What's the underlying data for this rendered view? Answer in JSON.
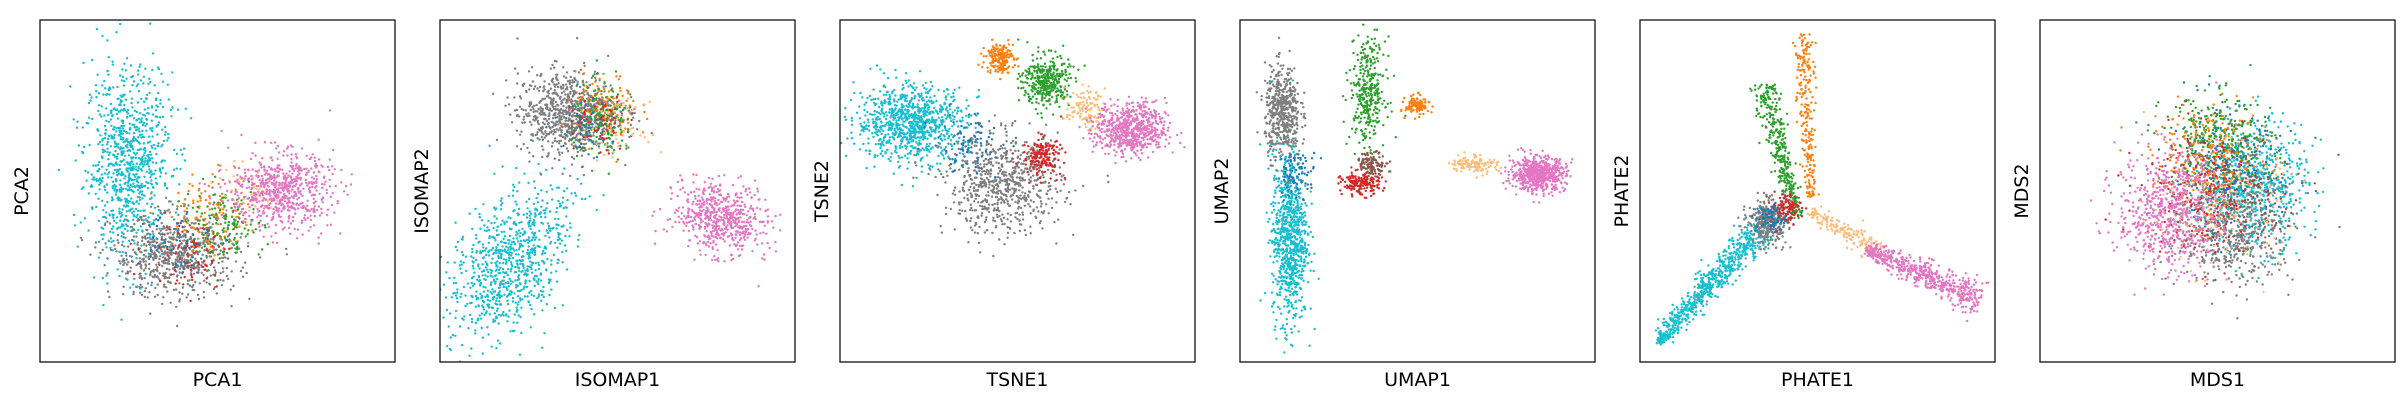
{
  "figure": {
    "background": "#ffffff"
  },
  "chart_data": [
    {
      "type": "scatter",
      "title": "",
      "xlabel": "PCA1",
      "ylabel": "PCA2",
      "xticks": false,
      "yticks": false,
      "grid": false,
      "legend": "none",
      "xlim": [
        0,
        10
      ],
      "ylim": [
        0,
        10
      ],
      "series": [
        {
          "name": "cyan",
          "color": "#17becf",
          "shape": "blob",
          "center": [
            2.5,
            5.8
          ],
          "spread": [
            1.1,
            2.5
          ],
          "rotation": 0,
          "count": 900
        },
        {
          "name": "gray",
          "color": "#7f7f7f",
          "shape": "blob",
          "center": [
            3.8,
            3.1
          ],
          "spread": [
            1.6,
            1.1
          ],
          "rotation": 0,
          "count": 650
        },
        {
          "name": "orange",
          "color": "#ff7f0e",
          "shape": "blob",
          "center": [
            4.8,
            4.2
          ],
          "spread": [
            1.0,
            1.1
          ],
          "rotation": 0,
          "count": 140
        },
        {
          "name": "green",
          "color": "#2ca02c",
          "shape": "blob",
          "center": [
            5.2,
            4.0
          ],
          "spread": [
            1.0,
            1.0
          ],
          "rotation": 0,
          "count": 150
        },
        {
          "name": "red",
          "color": "#d62728",
          "shape": "blob",
          "center": [
            4.2,
            3.2
          ],
          "spread": [
            1.1,
            0.9
          ],
          "rotation": 0,
          "count": 80
        },
        {
          "name": "blue",
          "color": "#1f77b4",
          "shape": "blob",
          "center": [
            3.8,
            3.6
          ],
          "spread": [
            1.0,
            0.9
          ],
          "rotation": 0,
          "count": 70
        },
        {
          "name": "peach",
          "color": "#ffbb78",
          "shape": "blob",
          "center": [
            5.8,
            5.0
          ],
          "spread": [
            0.9,
            0.7
          ],
          "rotation": 0,
          "count": 60
        },
        {
          "name": "pink",
          "color": "#e377c2",
          "shape": "blob",
          "center": [
            6.8,
            5.0
          ],
          "spread": [
            1.3,
            1.0
          ],
          "rotation": 0,
          "count": 650
        }
      ]
    },
    {
      "type": "scatter",
      "title": "",
      "xlabel": "ISOMAP1",
      "ylabel": "ISOMAP2",
      "xticks": false,
      "yticks": false,
      "grid": false,
      "legend": "none",
      "xlim": [
        0,
        10
      ],
      "ylim": [
        0,
        10
      ],
      "series": [
        {
          "name": "cyan",
          "color": "#17becf",
          "shape": "blob",
          "center": [
            2.0,
            2.9
          ],
          "spread": [
            1.2,
            2.3
          ],
          "rotation": -30,
          "count": 850
        },
        {
          "name": "gray",
          "color": "#7f7f7f",
          "shape": "blob",
          "center": [
            3.6,
            7.3
          ],
          "spread": [
            1.3,
            1.1
          ],
          "rotation": 0,
          "count": 800
        },
        {
          "name": "orange",
          "color": "#ff7f0e",
          "shape": "blob",
          "center": [
            4.7,
            7.4
          ],
          "spread": [
            0.8,
            0.9
          ],
          "rotation": 0,
          "count": 130
        },
        {
          "name": "green",
          "color": "#2ca02c",
          "shape": "blob",
          "center": [
            4.6,
            7.0
          ],
          "spread": [
            0.8,
            1.0
          ],
          "rotation": 0,
          "count": 160
        },
        {
          "name": "red",
          "color": "#d62728",
          "shape": "blob",
          "center": [
            4.4,
            6.9
          ],
          "spread": [
            0.8,
            0.8
          ],
          "rotation": 0,
          "count": 70
        },
        {
          "name": "blue",
          "color": "#1f77b4",
          "shape": "blob",
          "center": [
            4.1,
            7.0
          ],
          "spread": [
            0.8,
            0.8
          ],
          "rotation": 0,
          "count": 60
        },
        {
          "name": "peach",
          "color": "#ffbb78",
          "shape": "blob",
          "center": [
            5.0,
            6.8
          ],
          "spread": [
            0.7,
            0.7
          ],
          "rotation": 0,
          "count": 50
        },
        {
          "name": "pink",
          "color": "#e377c2",
          "shape": "blob",
          "center": [
            7.9,
            4.2
          ],
          "spread": [
            1.2,
            0.9
          ],
          "rotation": -20,
          "count": 600
        }
      ]
    },
    {
      "type": "scatter",
      "title": "",
      "xlabel": "TSNE1",
      "ylabel": "TSNE2",
      "xticks": false,
      "yticks": false,
      "grid": false,
      "legend": "none",
      "xlim": [
        0,
        10
      ],
      "ylim": [
        0,
        10
      ],
      "series": [
        {
          "name": "cyan",
          "color": "#17becf",
          "shape": "blob",
          "center": [
            2.0,
            7.0
          ],
          "spread": [
            1.4,
            1.0
          ],
          "rotation": 0,
          "count": 900
        },
        {
          "name": "gray",
          "color": "#7f7f7f",
          "shape": "blob",
          "center": [
            4.6,
            5.2
          ],
          "spread": [
            1.5,
            1.3
          ],
          "rotation": 0,
          "count": 700
        },
        {
          "name": "orange",
          "color": "#ff7f0e",
          "shape": "blob",
          "center": [
            4.5,
            8.9
          ],
          "spread": [
            0.35,
            0.4
          ],
          "rotation": 0,
          "count": 180
        },
        {
          "name": "green",
          "color": "#2ca02c",
          "shape": "blob",
          "center": [
            5.8,
            8.2
          ],
          "spread": [
            0.6,
            0.7
          ],
          "rotation": 0,
          "count": 360
        },
        {
          "name": "red",
          "color": "#d62728",
          "shape": "blob",
          "center": [
            5.7,
            6.0
          ],
          "spread": [
            0.5,
            0.5
          ],
          "rotation": 0,
          "count": 170
        },
        {
          "name": "blue",
          "color": "#1f77b4",
          "shape": "blob",
          "center": [
            3.6,
            6.4
          ],
          "spread": [
            0.9,
            0.8
          ],
          "rotation": 0,
          "count": 90
        },
        {
          "name": "peach",
          "color": "#ffbb78",
          "shape": "blob",
          "center": [
            6.9,
            7.4
          ],
          "spread": [
            0.5,
            0.5
          ],
          "rotation": 0,
          "count": 110
        },
        {
          "name": "pink",
          "color": "#e377c2",
          "shape": "blob",
          "center": [
            8.2,
            6.8
          ],
          "spread": [
            0.9,
            0.7
          ],
          "rotation": 0,
          "count": 650
        }
      ]
    },
    {
      "type": "scatter",
      "title": "",
      "xlabel": "UMAP1",
      "ylabel": "UMAP2",
      "xticks": false,
      "yticks": false,
      "grid": false,
      "legend": "none",
      "xlim": [
        0,
        10
      ],
      "ylim": [
        0,
        10
      ],
      "series": [
        {
          "name": "cyan",
          "color": "#17becf",
          "shape": "blob",
          "center": [
            1.4,
            3.7
          ],
          "spread": [
            0.45,
            2.3
          ],
          "rotation": 0,
          "count": 850
        },
        {
          "name": "gray",
          "color": "#7f7f7f",
          "shape": "blob",
          "center": [
            1.2,
            7.3
          ],
          "spread": [
            0.45,
            1.2
          ],
          "rotation": 0,
          "count": 500
        },
        {
          "name": "green",
          "color": "#2ca02c",
          "shape": "blob",
          "center": [
            3.6,
            7.9
          ],
          "spread": [
            0.45,
            1.4
          ],
          "rotation": 0,
          "count": 340
        },
        {
          "name": "orange",
          "color": "#ff7f0e",
          "shape": "blob",
          "center": [
            5.0,
            7.5
          ],
          "spread": [
            0.3,
            0.25
          ],
          "rotation": 0,
          "count": 120
        },
        {
          "name": "red",
          "color": "#d62728",
          "shape": "blob",
          "center": [
            3.4,
            5.2
          ],
          "spread": [
            0.5,
            0.3
          ],
          "rotation": 0,
          "count": 170
        },
        {
          "name": "brown",
          "color": "#8c564b",
          "shape": "blob",
          "center": [
            3.7,
            5.8
          ],
          "spread": [
            0.4,
            0.3
          ],
          "rotation": 0,
          "count": 110
        },
        {
          "name": "blue",
          "color": "#1f77b4",
          "shape": "blob",
          "center": [
            1.6,
            5.5
          ],
          "spread": [
            0.5,
            0.6
          ],
          "rotation": 0,
          "count": 90
        },
        {
          "name": "peach",
          "color": "#ffbb78",
          "shape": "blob",
          "center": [
            6.6,
            5.8
          ],
          "spread": [
            0.6,
            0.25
          ],
          "rotation": 0,
          "count": 120
        },
        {
          "name": "pink",
          "color": "#e377c2",
          "shape": "blob",
          "center": [
            8.4,
            5.5
          ],
          "spread": [
            0.7,
            0.45
          ],
          "rotation": 0,
          "count": 600
        }
      ]
    },
    {
      "type": "scatter",
      "title": "",
      "xlabel": "PHATE1",
      "ylabel": "PHATE2",
      "xticks": false,
      "yticks": false,
      "grid": false,
      "legend": "none",
      "xlim": [
        0,
        10
      ],
      "ylim": [
        0,
        10
      ],
      "series": [
        {
          "name": "cyan",
          "color": "#17becf",
          "shape": "arm",
          "from": [
            0.5,
            0.6
          ],
          "to": [
            3.4,
            3.9
          ],
          "spread": 0.25,
          "count": 700
        },
        {
          "name": "gray",
          "color": "#7f7f7f",
          "shape": "blob",
          "center": [
            3.6,
            4.1
          ],
          "spread": [
            0.5,
            0.6
          ],
          "rotation": 0,
          "count": 350
        },
        {
          "name": "green",
          "color": "#2ca02c",
          "shape": "arm",
          "from": [
            4.4,
            4.3
          ],
          "to": [
            3.5,
            8.1
          ],
          "spread": 0.2,
          "count": 360
        },
        {
          "name": "orange",
          "color": "#ff7f0e",
          "shape": "arm",
          "from": [
            4.8,
            4.8
          ],
          "to": [
            4.6,
            9.6
          ],
          "spread": 0.15,
          "count": 240
        },
        {
          "name": "red",
          "color": "#d62728",
          "shape": "blob",
          "center": [
            4.1,
            4.5
          ],
          "spread": [
            0.4,
            0.4
          ],
          "rotation": 0,
          "count": 100
        },
        {
          "name": "blue",
          "color": "#1f77b4",
          "shape": "blob",
          "center": [
            3.7,
            4.2
          ],
          "spread": [
            0.4,
            0.4
          ],
          "rotation": 0,
          "count": 70
        },
        {
          "name": "peach",
          "color": "#ffbb78",
          "shape": "arm",
          "from": [
            4.8,
            4.4
          ],
          "to": [
            6.8,
            3.2
          ],
          "spread": 0.2,
          "count": 170
        },
        {
          "name": "pink",
          "color": "#e377c2",
          "shape": "arm",
          "from": [
            6.4,
            3.3
          ],
          "to": [
            9.6,
            1.8
          ],
          "spread": 0.25,
          "count": 550
        }
      ]
    },
    {
      "type": "scatter",
      "title": "",
      "xlabel": "MDS1",
      "ylabel": "MDS2",
      "xticks": false,
      "yticks": false,
      "grid": false,
      "legend": "none",
      "xlim": [
        0,
        10
      ],
      "ylim": [
        0,
        10
      ],
      "series": [
        {
          "name": "teal",
          "color": "#17becf",
          "shape": "blob",
          "center": [
            6.0,
            5.2
          ],
          "spread": [
            1.4,
            1.7
          ],
          "rotation": 0,
          "count": 700
        },
        {
          "name": "blue",
          "color": "#1f77b4",
          "shape": "blob",
          "center": [
            5.2,
            5.5
          ],
          "spread": [
            1.4,
            1.7
          ],
          "rotation": 0,
          "count": 250
        },
        {
          "name": "gray",
          "color": "#7f7f7f",
          "shape": "blob",
          "center": [
            5.5,
            3.7
          ],
          "spread": [
            1.5,
            1.3
          ],
          "rotation": 0,
          "count": 450
        },
        {
          "name": "green",
          "color": "#2ca02c",
          "shape": "blob",
          "center": [
            5.0,
            6.5
          ],
          "spread": [
            1.4,
            1.2
          ],
          "rotation": 0,
          "count": 300
        },
        {
          "name": "orange",
          "color": "#ff7f0e",
          "shape": "blob",
          "center": [
            4.8,
            6.0
          ],
          "spread": [
            1.5,
            1.3
          ],
          "rotation": 0,
          "count": 220
        },
        {
          "name": "red",
          "color": "#d62728",
          "shape": "blob",
          "center": [
            4.6,
            5.0
          ],
          "spread": [
            1.6,
            1.6
          ],
          "rotation": 0,
          "count": 220
        },
        {
          "name": "brown",
          "color": "#8c564b",
          "shape": "blob",
          "center": [
            5.5,
            5.0
          ],
          "spread": [
            1.6,
            1.6
          ],
          "rotation": 0,
          "count": 180
        },
        {
          "name": "peach",
          "color": "#ffbb78",
          "shape": "blob",
          "center": [
            5.0,
            4.5
          ],
          "spread": [
            1.6,
            1.6
          ],
          "rotation": 0,
          "count": 150
        },
        {
          "name": "pink",
          "color": "#e377c2",
          "shape": "blob",
          "center": [
            3.6,
            4.4
          ],
          "spread": [
            1.3,
            1.6
          ],
          "rotation": 0,
          "count": 650
        }
      ]
    }
  ]
}
